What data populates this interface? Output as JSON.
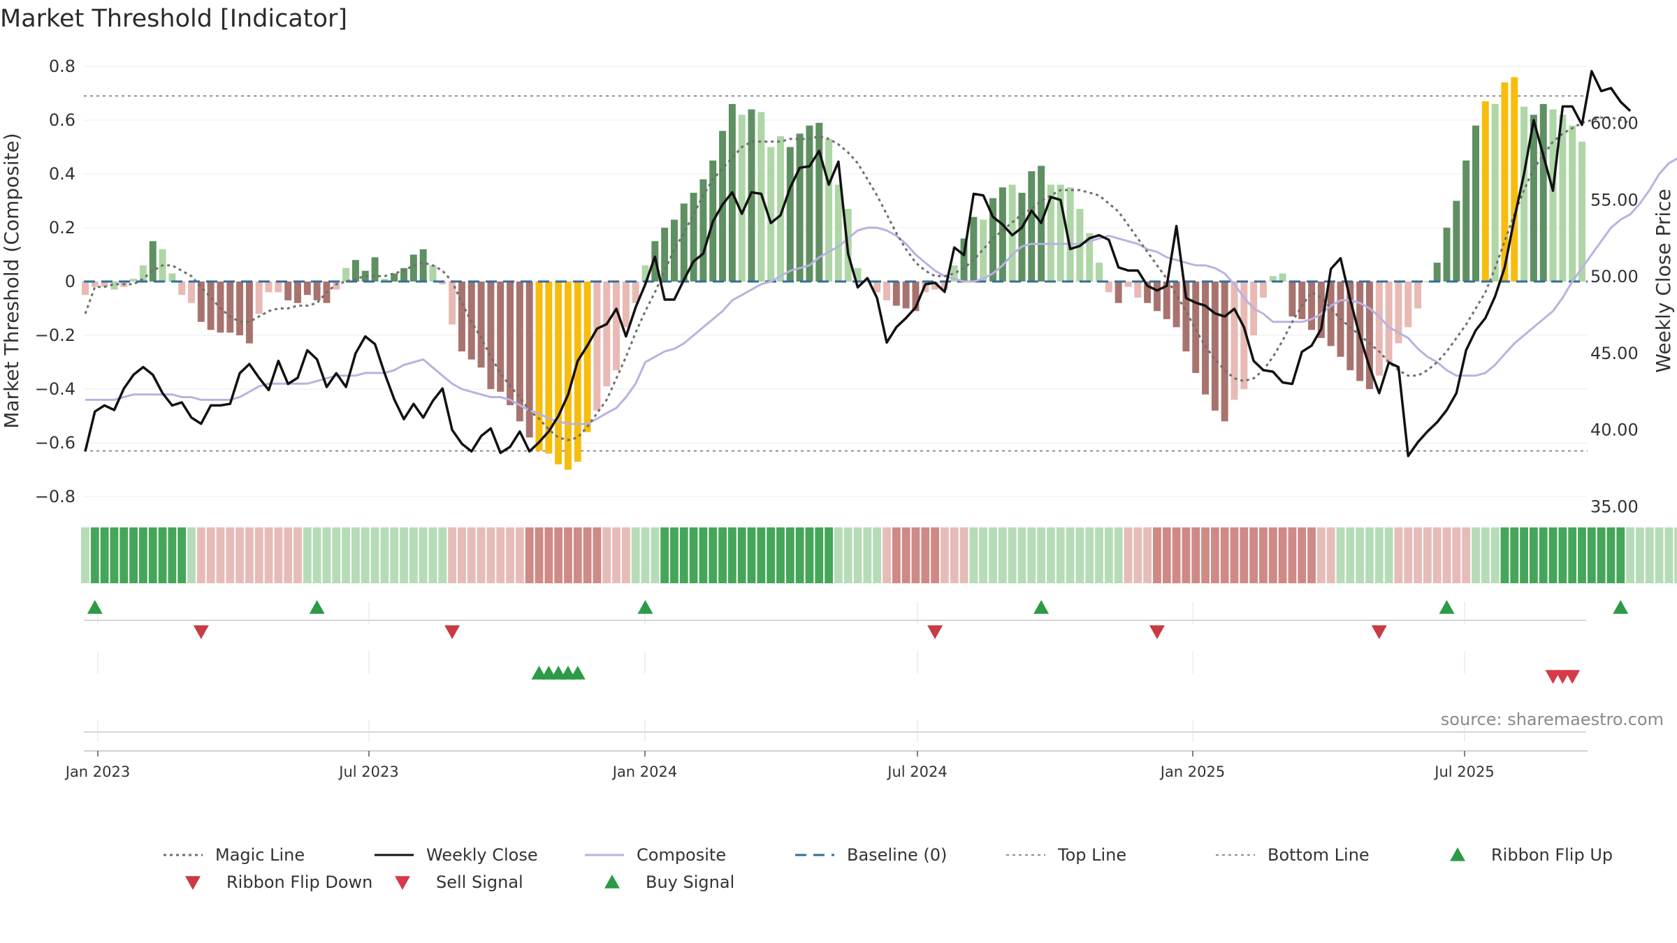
{
  "chart_data": {
    "type": "bar",
    "title": "Market Threshold [Indicator]",
    "ylabel": "Market Threshold (Composite)",
    "ylabel_right": "Weekly Close Price",
    "ylim": [
      -0.85,
      0.85
    ],
    "ylim_right": [
      35.0,
      64.5
    ],
    "yticks": [
      "0.8",
      "0.6",
      "0.4",
      "0.2",
      "0",
      "−0.2",
      "−0.4",
      "−0.6",
      "−0.8"
    ],
    "yticks_right": [
      "60.00",
      "55.00",
      "50.00",
      "45.00",
      "40.00",
      "35.00"
    ],
    "xticks": [
      "Jan 2023",
      "Jul 2023",
      "Jan 2024",
      "Jul 2024",
      "Jan 2025",
      "Jul 2025"
    ],
    "top_line": 0.69,
    "bottom_line": -0.63,
    "source": "source: sharemaestro.com",
    "colors": {
      "strong_up": "#5e9061",
      "weak_up": "#afd6a6",
      "strong_down": "#a8736e",
      "weak_down": "#e9b9b4",
      "extreme": "#f6bd0e",
      "close": "#111111",
      "composite": "#b8b2e0",
      "magic": "#6e6e6e",
      "baseline": "#2f6e9c",
      "buy": "#2d9a47",
      "sell": "#d63a4a"
    },
    "series": [
      {
        "name": "Composite Bars",
        "values": [
          -0.05,
          -0.02,
          -0.02,
          -0.03,
          -0.02,
          0.01,
          0.06,
          0.15,
          0.12,
          0.03,
          -0.05,
          -0.08,
          -0.15,
          -0.18,
          -0.19,
          -0.19,
          -0.2,
          -0.23,
          -0.12,
          -0.04,
          -0.04,
          -0.07,
          -0.08,
          -0.05,
          -0.07,
          -0.08,
          -0.03,
          0.05,
          0.08,
          0.04,
          0.09,
          0.01,
          0.03,
          0.05,
          0.1,
          0.12,
          0.06,
          -0.01,
          -0.16,
          -0.26,
          -0.29,
          -0.32,
          -0.4,
          -0.41,
          -0.46,
          -0.52,
          -0.58,
          -0.63,
          -0.64,
          -0.68,
          -0.7,
          -0.67,
          -0.56,
          -0.48,
          -0.39,
          -0.33,
          -0.17,
          -0.08,
          0.06,
          0.15,
          0.2,
          0.23,
          0.29,
          0.33,
          0.38,
          0.45,
          0.56,
          0.66,
          0.62,
          0.64,
          0.63,
          0.5,
          0.54,
          0.5,
          0.55,
          0.58,
          0.59,
          0.53,
          0.36,
          0.27,
          0.05,
          0.0,
          -0.04,
          -0.07,
          -0.09,
          -0.1,
          -0.11,
          -0.04,
          -0.03,
          -0.03,
          0.06,
          0.16,
          0.24,
          0.23,
          0.31,
          0.35,
          0.36,
          0.33,
          0.41,
          0.43,
          0.36,
          0.36,
          0.35,
          0.27,
          0.18,
          0.07,
          -0.04,
          -0.08,
          -0.02,
          -0.06,
          -0.08,
          -0.11,
          -0.14,
          -0.17,
          -0.26,
          -0.34,
          -0.42,
          -0.48,
          -0.52,
          -0.44,
          -0.4,
          -0.2,
          -0.06,
          0.02,
          0.03,
          -0.13,
          -0.14,
          -0.18,
          -0.21,
          -0.24,
          -0.28,
          -0.33,
          -0.37,
          -0.4,
          -0.35,
          -0.3,
          -0.23,
          -0.17,
          -0.1,
          0.0,
          0.07,
          0.2,
          0.3,
          0.45,
          0.58,
          0.67,
          0.66,
          0.74,
          0.76,
          0.65,
          0.62,
          0.66,
          0.64,
          0.62,
          0.58,
          0.52
        ],
        "colors": [
          "wd",
          "wd",
          "wd",
          "wu",
          "wd",
          "wu",
          "wu",
          "su",
          "wu",
          "wu",
          "wd",
          "wd",
          "sd",
          "sd",
          "sd",
          "sd",
          "sd",
          "sd",
          "wd",
          "wd",
          "wd",
          "sd",
          "sd",
          "sd",
          "sd",
          "sd",
          "wd",
          "wu",
          "su",
          "su",
          "su",
          "wu",
          "su",
          "su",
          "su",
          "su",
          "wu",
          "wd",
          "wd",
          "sd",
          "sd",
          "sd",
          "sd",
          "sd",
          "sd",
          "sd",
          "sd",
          "ex",
          "ex",
          "ex",
          "ex",
          "ex",
          "ex",
          "wd",
          "wd",
          "wd",
          "wd",
          "wd",
          "wu",
          "su",
          "su",
          "su",
          "su",
          "su",
          "su",
          "su",
          "su",
          "su",
          "wu",
          "su",
          "wu",
          "wu",
          "wu",
          "su",
          "su",
          "su",
          "su",
          "wu",
          "wu",
          "wu",
          "wu",
          "wu",
          "wd",
          "wd",
          "sd",
          "sd",
          "sd",
          "wd",
          "wd",
          "wd",
          "wu",
          "su",
          "su",
          "wu",
          "su",
          "su",
          "wu",
          "su",
          "su",
          "su",
          "wu",
          "wu",
          "wu",
          "wu",
          "wu",
          "wu",
          "wd",
          "sd",
          "wd",
          "wd",
          "sd",
          "sd",
          "sd",
          "sd",
          "sd",
          "sd",
          "sd",
          "sd",
          "sd",
          "wd",
          "wd",
          "wd",
          "wd",
          "wu",
          "wu",
          "sd",
          "sd",
          "sd",
          "sd",
          "sd",
          "sd",
          "sd",
          "sd",
          "sd",
          "wd",
          "wd",
          "wd",
          "wd",
          "wd",
          "wu",
          "su",
          "su",
          "su",
          "su",
          "su",
          "ex",
          "wu",
          "ex",
          "ex",
          "wu",
          "su",
          "su",
          "wu",
          "wu",
          "wu",
          "wu"
        ]
      },
      {
        "name": "Weekly Close",
        "values": [
          38.6,
          41.2,
          41.6,
          41.3,
          42.7,
          43.6,
          44.1,
          43.6,
          42.4,
          41.6,
          41.8,
          40.8,
          40.4,
          41.6,
          41.6,
          41.7,
          43.7,
          44.3,
          43.4,
          42.6,
          44.5,
          43.0,
          43.4,
          45.2,
          44.6,
          42.8,
          43.7,
          42.8,
          45.0,
          46.1,
          45.6,
          43.7,
          42.0,
          40.7,
          41.7,
          40.8,
          41.9,
          42.7,
          40.0,
          39.1,
          38.6,
          39.6,
          40.1,
          38.5,
          38.9,
          39.9,
          38.6,
          39.2,
          39.9,
          40.9,
          42.3,
          44.5,
          45.5,
          46.6,
          46.9,
          47.9,
          46.1,
          48.0,
          49.5,
          51.3,
          48.5,
          48.5,
          49.8,
          51.0,
          51.5,
          53.6,
          54.7,
          55.5,
          54.1,
          55.5,
          55.4,
          53.5,
          54.0,
          55.8,
          57.1,
          57.2,
          58.2,
          56.0,
          57.5,
          51.5,
          49.3,
          49.9,
          48.6,
          45.7,
          46.7,
          47.3,
          48.0,
          49.5,
          49.6,
          49.0,
          51.9,
          51.4,
          55.4,
          55.3,
          53.9,
          53.4,
          52.7,
          53.2,
          54.3,
          53.5,
          55.2,
          55.0,
          51.8,
          52.0,
          52.5,
          52.7,
          52.4,
          50.6,
          50.4,
          50.4,
          49.4,
          49.1,
          49.4,
          53.3,
          48.6,
          48.3,
          48.1,
          47.6,
          47.4,
          47.9,
          46.7,
          44.5,
          43.9,
          43.8,
          43.1,
          43.0,
          45.1,
          45.5,
          46.6,
          50.5,
          51.2,
          48.5,
          46.1,
          44.1,
          42.4,
          44.4,
          44.1,
          38.3,
          39.2,
          39.9,
          40.5,
          41.3,
          42.4,
          45.2,
          46.5,
          47.3,
          48.7,
          50.6,
          53.8,
          56.7,
          60.2,
          57.9,
          55.6,
          61.1,
          61.1,
          59.9,
          63.4,
          62.1,
          62.3,
          61.4,
          60.8
        ]
      },
      {
        "name": "Composite",
        "values": [
          -0.44,
          -0.44,
          -0.44,
          -0.44,
          -0.43,
          -0.42,
          -0.42,
          -0.42,
          -0.42,
          -0.42,
          -0.43,
          -0.43,
          -0.44,
          -0.44,
          -0.44,
          -0.44,
          -0.43,
          -0.41,
          -0.39,
          -0.38,
          -0.38,
          -0.38,
          -0.38,
          -0.38,
          -0.37,
          -0.36,
          -0.35,
          -0.35,
          -0.35,
          -0.34,
          -0.34,
          -0.34,
          -0.33,
          -0.31,
          -0.3,
          -0.29,
          -0.32,
          -0.35,
          -0.38,
          -0.4,
          -0.41,
          -0.42,
          -0.43,
          -0.43,
          -0.44,
          -0.46,
          -0.48,
          -0.49,
          -0.51,
          -0.52,
          -0.53,
          -0.53,
          -0.53,
          -0.51,
          -0.49,
          -0.47,
          -0.43,
          -0.38,
          -0.3,
          -0.28,
          -0.26,
          -0.25,
          -0.23,
          -0.2,
          -0.17,
          -0.14,
          -0.11,
          -0.07,
          -0.05,
          -0.03,
          -0.01,
          0.0,
          0.02,
          0.04,
          0.05,
          0.06,
          0.09,
          0.11,
          0.13,
          0.16,
          0.19,
          0.2,
          0.2,
          0.19,
          0.17,
          0.14,
          0.1,
          0.07,
          0.04,
          0.02,
          0.01,
          0.0,
          0.0,
          0.01,
          0.03,
          0.06,
          0.1,
          0.13,
          0.14,
          0.14,
          0.14,
          0.14,
          0.14,
          0.14,
          0.15,
          0.16,
          0.17,
          0.16,
          0.15,
          0.14,
          0.12,
          0.11,
          0.09,
          0.08,
          0.07,
          0.06,
          0.06,
          0.05,
          0.03,
          -0.01,
          -0.06,
          -0.1,
          -0.12,
          -0.15,
          -0.15,
          -0.15,
          -0.15,
          -0.14,
          -0.12,
          -0.09,
          -0.07,
          -0.07,
          -0.08,
          -0.1,
          -0.13,
          -0.17,
          -0.19,
          -0.21,
          -0.25,
          -0.28,
          -0.3,
          -0.33,
          -0.35,
          -0.35,
          -0.35,
          -0.34,
          -0.31,
          -0.27,
          -0.23,
          -0.2,
          -0.17,
          -0.14,
          -0.11,
          -0.06,
          0.0,
          0.05,
          0.1,
          0.15,
          0.2,
          0.23,
          0.25,
          0.29,
          0.34,
          0.4,
          0.44,
          0.46,
          0.47
        ]
      },
      {
        "name": "Magic Line",
        "values": [
          -0.12,
          -0.02,
          -0.02,
          -0.01,
          -0.01,
          -0.01,
          0.01,
          0.04,
          0.06,
          0.06,
          0.04,
          0.02,
          -0.02,
          -0.06,
          -0.1,
          -0.13,
          -0.15,
          -0.15,
          -0.13,
          -0.11,
          -0.1,
          -0.1,
          -0.09,
          -0.09,
          -0.08,
          -0.04,
          -0.01,
          0.0,
          0.01,
          0.02,
          0.02,
          0.02,
          0.03,
          0.04,
          0.06,
          0.07,
          0.06,
          0.04,
          0.0,
          -0.08,
          -0.15,
          -0.21,
          -0.28,
          -0.34,
          -0.39,
          -0.43,
          -0.48,
          -0.51,
          -0.55,
          -0.58,
          -0.59,
          -0.58,
          -0.54,
          -0.49,
          -0.44,
          -0.36,
          -0.28,
          -0.19,
          -0.11,
          -0.04,
          0.04,
          0.12,
          0.18,
          0.25,
          0.32,
          0.38,
          0.42,
          0.46,
          0.5,
          0.52,
          0.52,
          0.52,
          0.52,
          0.53,
          0.53,
          0.53,
          0.54,
          0.53,
          0.51,
          0.48,
          0.44,
          0.38,
          0.32,
          0.25,
          0.18,
          0.12,
          0.07,
          0.04,
          0.02,
          0.02,
          0.03,
          0.05,
          0.08,
          0.12,
          0.16,
          0.19,
          0.22,
          0.25,
          0.27,
          0.3,
          0.32,
          0.34,
          0.34,
          0.34,
          0.33,
          0.32,
          0.29,
          0.26,
          0.21,
          0.16,
          0.11,
          0.06,
          0.01,
          -0.05,
          -0.11,
          -0.18,
          -0.24,
          -0.29,
          -0.33,
          -0.36,
          -0.37,
          -0.36,
          -0.33,
          -0.28,
          -0.22,
          -0.15,
          -0.09,
          -0.04,
          -0.06,
          -0.1,
          -0.14,
          -0.17,
          -0.2,
          -0.23,
          -0.26,
          -0.3,
          -0.33,
          -0.35,
          -0.35,
          -0.33,
          -0.3,
          -0.26,
          -0.21,
          -0.16,
          -0.1,
          -0.04,
          0.05,
          0.15,
          0.25,
          0.34,
          0.42,
          0.47,
          0.52,
          0.55,
          0.57,
          0.59,
          0.6,
          0.61,
          0.61,
          0.6,
          0.59
        ]
      }
    ],
    "ribbon": [
      1,
      2,
      2,
      2,
      2,
      2,
      2,
      2,
      2,
      2,
      2,
      1,
      -1,
      -1,
      -1,
      -1,
      -1,
      -1,
      -1,
      -1,
      -1,
      -1,
      -1,
      1,
      1,
      1,
      1,
      1,
      1,
      1,
      1,
      1,
      1,
      1,
      1,
      1,
      1,
      1,
      -1,
      -1,
      -1,
      -1,
      -1,
      -1,
      -1,
      -1,
      -2,
      -2,
      -2,
      -2,
      -2,
      -2,
      -2,
      -2,
      -1,
      -1,
      -1,
      1,
      1,
      1,
      2,
      2,
      2,
      2,
      2,
      2,
      2,
      2,
      2,
      2,
      2,
      2,
      2,
      2,
      2,
      2,
      2,
      2,
      1,
      1,
      1,
      1,
      1,
      -1,
      -2,
      -2,
      -2,
      -2,
      -2,
      -1,
      -1,
      -1,
      1,
      1,
      1,
      1,
      1,
      1,
      1,
      1,
      1,
      1,
      1,
      1,
      1,
      1,
      1,
      1,
      -1,
      -1,
      -1,
      -2,
      -2,
      -2,
      -2,
      -2,
      -2,
      -2,
      -2,
      -2,
      -2,
      -2,
      -2,
      -2,
      -2,
      -2,
      -2,
      -2,
      -1,
      -1,
      1,
      1,
      1,
      1,
      1,
      1,
      -1,
      -1,
      -1,
      -1,
      -1,
      -1,
      -1,
      -1,
      1,
      1,
      1,
      2,
      2,
      2,
      2,
      2,
      2,
      2,
      2,
      2,
      2,
      2,
      2,
      2,
      1,
      1,
      1,
      1,
      1,
      1,
      1
    ],
    "ribbon_flip_up": [
      1,
      24,
      58,
      99,
      141,
      159
    ],
    "ribbon_flip_down": [
      12,
      38,
      88,
      111,
      134
    ],
    "buy_signal": [
      47,
      48,
      49,
      50,
      51
    ],
    "sell_signal": [
      152,
      153,
      154
    ],
    "legend": [
      {
        "label": "Magic Line",
        "kind": "dotted",
        "color": "#6e6e6e"
      },
      {
        "label": "Weekly Close",
        "kind": "solid",
        "color": "#111111"
      },
      {
        "label": "Composite",
        "kind": "solid-light",
        "color": "#b8b2e0"
      },
      {
        "label": "Baseline (0)",
        "kind": "dashed",
        "color": "#2f6e9c"
      },
      {
        "label": "Top Line",
        "kind": "dotted-light",
        "color": "#8c8c8c"
      },
      {
        "label": "Bottom Line",
        "kind": "dotted-light",
        "color": "#8c8c8c"
      },
      {
        "label": "Ribbon Flip Up",
        "kind": "tri-up",
        "color": "#2d9a47"
      },
      {
        "label": "Ribbon Flip Down",
        "kind": "tri-down",
        "color": "#c93a42"
      },
      {
        "label": "Sell Signal",
        "kind": "tri-down",
        "color": "#d63a4a"
      },
      {
        "label": "Buy Signal",
        "kind": "tri-up",
        "color": "#2d9a47"
      }
    ]
  }
}
